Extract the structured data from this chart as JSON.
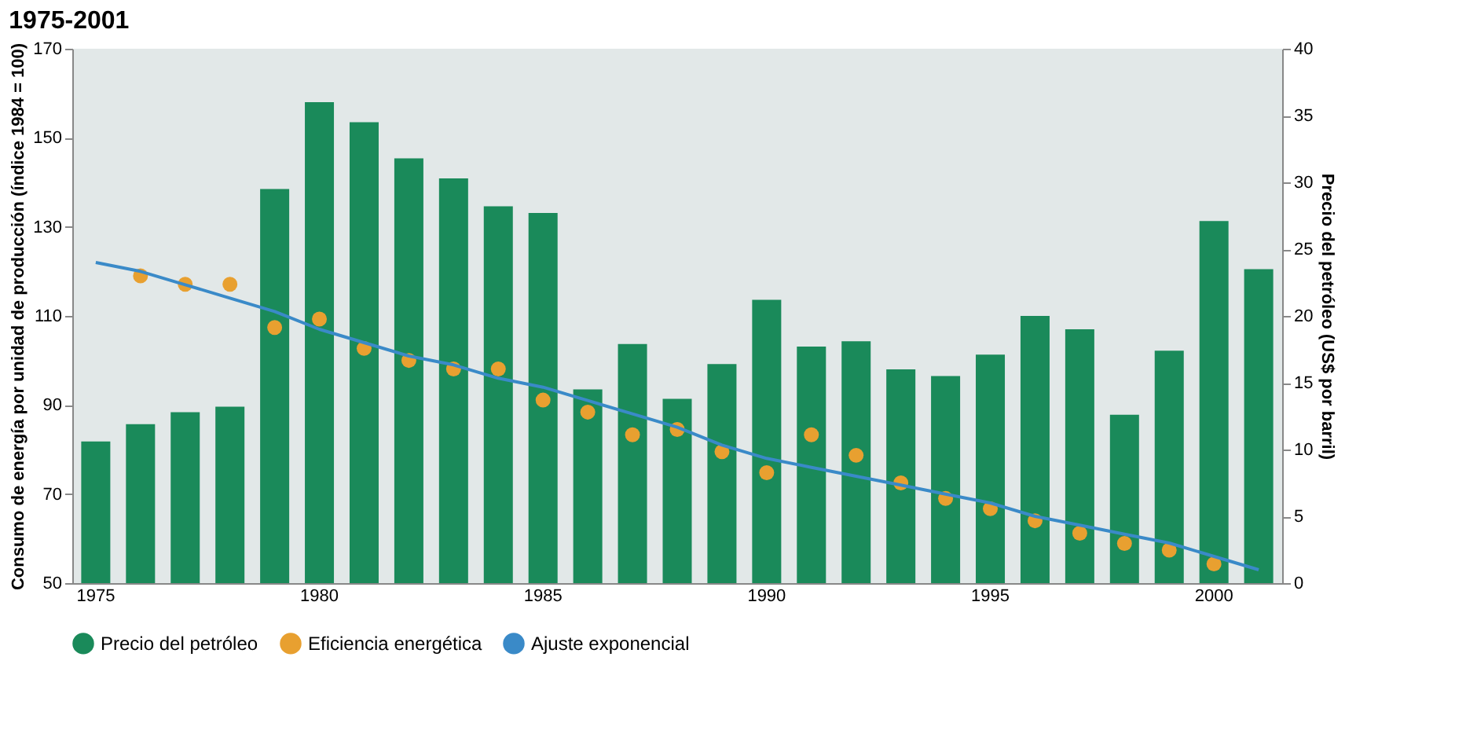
{
  "chart_data": {
    "type": "bar",
    "title": "1975-2001",
    "ylabel": "Consumo de energía por unidad de producción (índice 1984 = 100)",
    "y2label": "Precio del petróleo (US$ por barril)",
    "categories": [
      "1975",
      null,
      null,
      null,
      null,
      "1980",
      null,
      null,
      null,
      null,
      "1985",
      null,
      null,
      null,
      null,
      "1990",
      null,
      null,
      null,
      null,
      "1995",
      null,
      null,
      null,
      null,
      "2000",
      null
    ],
    "ylim": [
      50,
      170
    ],
    "yticks": [
      50,
      70,
      90,
      110,
      130,
      150,
      170
    ],
    "y2lim": [
      0,
      40
    ],
    "y2ticks": [
      0,
      5,
      10,
      15,
      20,
      25,
      30,
      35,
      40
    ],
    "grid": false,
    "legend": "bottom",
    "series": [
      {
        "name": "Precio del petróleo",
        "axis": "y2",
        "color": "#1a8a5a",
        "values": [
          10.6,
          11.9,
          12.8,
          13.2,
          29.5,
          36.0,
          34.5,
          31.8,
          30.3,
          28.2,
          27.7,
          14.5,
          17.9,
          13.8,
          16.4,
          21.2,
          17.7,
          18.1,
          16.0,
          15.5,
          17.1,
          20.0,
          19.0,
          12.6,
          17.4,
          27.1,
          23.5
        ]
      },
      {
        "name": "Eficiencia energética",
        "type": "scatter",
        "marker": "circle",
        "color": "#e8a030",
        "values": [
          null,
          119.0,
          117.1,
          117.1,
          107.4,
          109.3,
          102.7,
          100.0,
          98.1,
          98.1,
          91.1,
          88.4,
          83.3,
          84.5,
          79.5,
          74.8,
          83.3,
          78.7,
          72.5,
          69.0,
          66.7,
          64.0,
          61.2,
          58.9,
          57.4,
          54.3,
          null
        ]
      },
      {
        "name": "Ajuste exponencial",
        "type": "line",
        "line_style": "solid",
        "color": "#3a8ac8",
        "values": [
          122,
          120,
          117,
          114,
          111,
          107,
          104,
          101,
          99,
          96,
          94,
          91,
          88,
          85,
          81,
          78,
          76,
          74,
          72,
          70,
          68,
          65,
          63,
          61,
          59,
          56,
          53
        ]
      }
    ]
  }
}
